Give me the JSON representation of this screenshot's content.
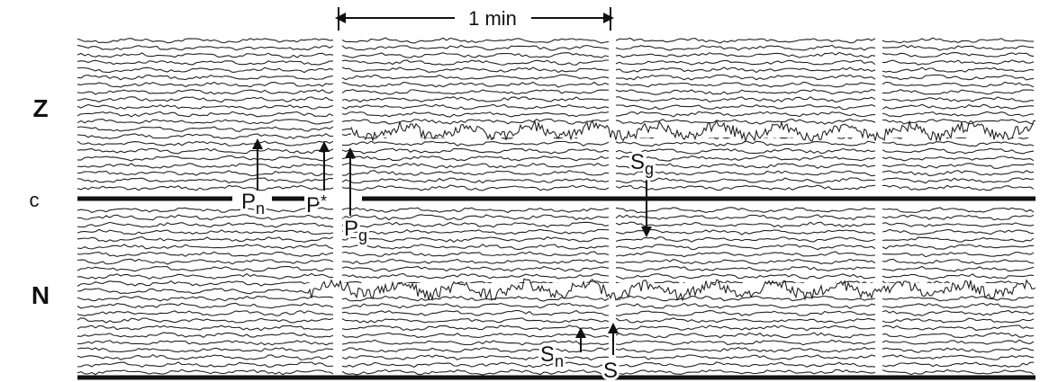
{
  "scale": {
    "label": "1 min"
  },
  "components": [
    "Z",
    "c",
    "N"
  ],
  "phases": [
    {
      "base": "P",
      "sub": "n"
    },
    {
      "base": "P",
      "sub": "*"
    },
    {
      "base": "P",
      "sub": "g"
    },
    {
      "base": "S",
      "sub": "g"
    },
    {
      "base": "S",
      "sub": "n"
    },
    {
      "base": "S",
      "sub": ""
    }
  ]
}
